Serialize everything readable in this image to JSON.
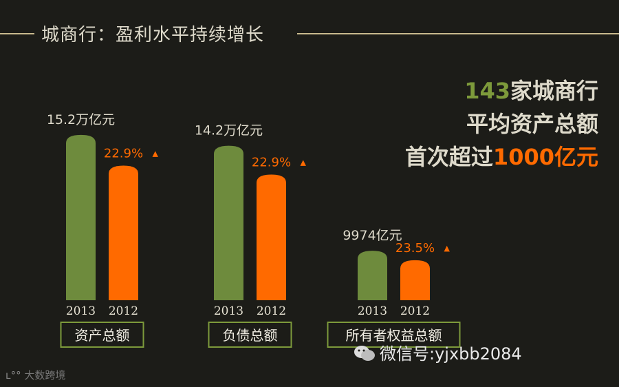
{
  "title": "城商行：盈利水平持续增长",
  "headline": {
    "count": "143",
    "line1_rest": "家城商行",
    "line2": "平均资产总额",
    "line3_prefix": "首次超过",
    "line3_highlight": "1000亿元"
  },
  "colors": {
    "bar_2013": "#6e8b3d",
    "bar_2012": "#ff6a00",
    "accent_green": "#7d9a3b",
    "background": "#1c1c18"
  },
  "chart_data": {
    "type": "bar",
    "categories": [
      "资产总额",
      "负债总额",
      "所有者权益总额"
    ],
    "years": [
      "2013",
      "2012"
    ],
    "series": [
      {
        "year": "2013",
        "values": [
          15.2,
          14.2,
          0.9974
        ],
        "labels": [
          "15.2万亿元",
          "14.2万亿元",
          "9974亿元"
        ]
      },
      {
        "year": "2012",
        "values": [
          12.37,
          11.55,
          0.8075
        ],
        "labels": [
          "22.9%",
          "22.9%",
          "23.5%"
        ]
      }
    ],
    "growth_marker": "▲"
  },
  "watermark": "微信号:yjxbb2084",
  "brand": "大数跨境"
}
